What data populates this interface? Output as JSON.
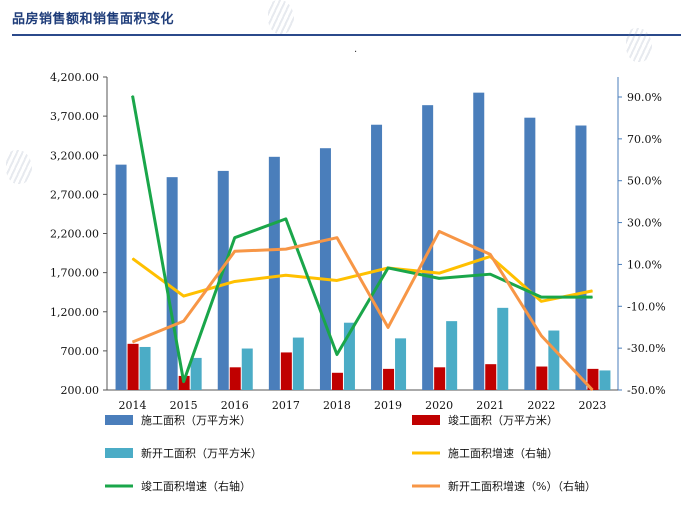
{
  "title": "品房销售额和销售面积变化",
  "colors": {
    "title": "#1f3d7a",
    "construction_area": "#4a7ebb",
    "completed_area": "#c00000",
    "new_start_area": "#4bacc6",
    "construction_growth": "#ffc000",
    "completed_growth": "#1aa64a",
    "new_start_growth": "#f79646"
  },
  "chart_data": {
    "type": "bar",
    "categories": [
      "2014",
      "2015",
      "2016",
      "2017",
      "2018",
      "2019",
      "2020",
      "2021",
      "2022",
      "2023"
    ],
    "y_left": {
      "min": 200,
      "max": 4200,
      "ticks": [
        "4,200.00",
        "3,700.00",
        "3,200.00",
        "2,700.00",
        "2,200.00",
        "1,700.00",
        "1,200.00",
        "700.00",
        "200.00"
      ]
    },
    "y_right": {
      "min": -50,
      "max": 100,
      "ticks": [
        "90.0%",
        "70.0%",
        "50.0%",
        "30.0%",
        "10.0%",
        "-10.0%",
        "-30.0%",
        "-50.0%"
      ]
    },
    "bar_series": [
      {
        "name": "施工面积（万平方米）",
        "values": [
          3080,
          2920,
          3000,
          3180,
          3290,
          3590,
          3840,
          4000,
          3680,
          3580
        ]
      },
      {
        "name": "竣工面积（万平方米）",
        "values": [
          790,
          380,
          490,
          680,
          420,
          470,
          490,
          530,
          500,
          470
        ]
      },
      {
        "name": "新开工面积（万平方米）",
        "values": [
          750,
          610,
          730,
          870,
          1060,
          860,
          1080,
          1250,
          960,
          450
        ]
      }
    ],
    "line_series": [
      {
        "name": "施工面积增速（右轴）",
        "values": [
          13.0,
          -5.0,
          2.0,
          5.0,
          2.5,
          8.5,
          6.0,
          14.0,
          -7.5,
          -2.5
        ]
      },
      {
        "name": "竣工面积增速（右轴）",
        "values": [
          91.0,
          -46.0,
          23.0,
          32.0,
          -33.0,
          8.5,
          3.5,
          5.5,
          -5.5,
          -5.5
        ]
      },
      {
        "name": "新开工面积增速（%）（右轴）",
        "values": [
          -27.0,
          -17.0,
          16.5,
          17.5,
          23.0,
          -20.0,
          26.0,
          15.0,
          -24.0,
          -50.0
        ]
      }
    ]
  }
}
